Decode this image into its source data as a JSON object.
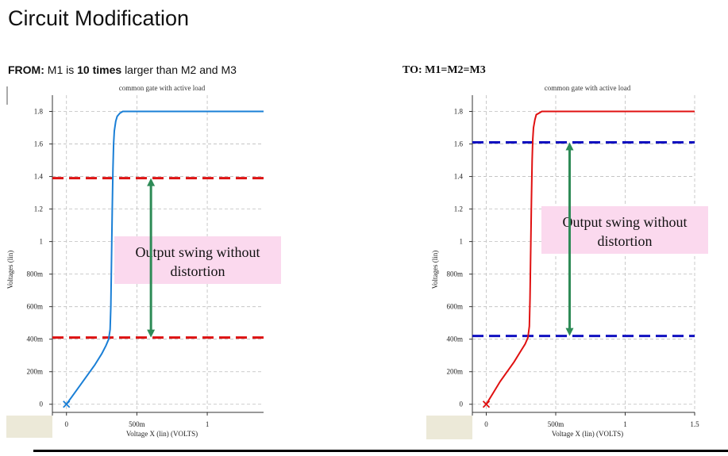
{
  "page": {
    "title": "Circuit Modification",
    "from_label": "FROM:",
    "from_text_1": "M1 is",
    "from_text_bold": "10 times",
    "from_text_2": "larger than M2 and M3",
    "to_label": "TO:",
    "to_text": "M1=M2=M3",
    "annotation_line1": "Output swing without",
    "annotation_line2": "distortion"
  },
  "colors": {
    "left_curve": "#1a7fd6",
    "right_curve": "#e01010",
    "left_dash": "#dd1111",
    "right_dash": "#1010c0",
    "arrow": "#2e8b57",
    "annotation_bg": "#fbd9ee",
    "grid": "#bdbdbd"
  },
  "chart_data": [
    {
      "type": "line",
      "title": "common gate with active load",
      "xlabel": "Voltage X (lin) (VOLTS)",
      "ylabel": "Voltages (lin)",
      "xlim": [
        -0.1,
        1.4
      ],
      "ylim": [
        -0.05,
        1.9
      ],
      "x_ticks": [
        {
          "v": 0,
          "label": "0"
        },
        {
          "v": 0.5,
          "label": "500m"
        },
        {
          "v": 1,
          "label": "1"
        }
      ],
      "y_ticks": [
        {
          "v": 0,
          "label": "0"
        },
        {
          "v": 0.2,
          "label": "200m"
        },
        {
          "v": 0.4,
          "label": "400m"
        },
        {
          "v": 0.6,
          "label": "600m"
        },
        {
          "v": 0.8,
          "label": "800m"
        },
        {
          "v": 1,
          "label": "1"
        },
        {
          "v": 1.2,
          "label": "1.2"
        },
        {
          "v": 1.4,
          "label": "1.4"
        },
        {
          "v": 1.6,
          "label": "1.6"
        },
        {
          "v": 1.8,
          "label": "1.8"
        }
      ],
      "grid": true,
      "series": [
        {
          "x": [
            0,
            0.05,
            0.1,
            0.15,
            0.2,
            0.25,
            0.28,
            0.3,
            0.31,
            0.315,
            0.32,
            0.325,
            0.33,
            0.335,
            0.34,
            0.35,
            0.36,
            0.38,
            0.4,
            0.45,
            0.5,
            0.6,
            0.8,
            1.0,
            1.2,
            1.4
          ],
          "y": [
            0,
            0.06,
            0.12,
            0.18,
            0.24,
            0.31,
            0.36,
            0.4,
            0.46,
            0.6,
            0.9,
            1.2,
            1.45,
            1.6,
            1.68,
            1.74,
            1.77,
            1.79,
            1.8,
            1.8,
            1.8,
            1.8,
            1.8,
            1.8,
            1.8,
            1.8
          ]
        }
      ],
      "hlines": [
        1.39,
        0.41
      ],
      "arrow": {
        "x": 0.6,
        "y1": 0.41,
        "y2": 1.39
      },
      "start_marker": {
        "x": 0,
        "y": 0
      }
    },
    {
      "type": "line",
      "title": "common gate with active load",
      "xlabel": "Voltage X (lin) (VOLTS)",
      "ylabel": "Voltages (lin)",
      "xlim": [
        -0.1,
        1.5
      ],
      "ylim": [
        -0.05,
        1.9
      ],
      "x_ticks": [
        {
          "v": 0,
          "label": "0"
        },
        {
          "v": 0.5,
          "label": "500m"
        },
        {
          "v": 1,
          "label": "1"
        },
        {
          "v": 1.5,
          "label": "1.5"
        }
      ],
      "y_ticks": [
        {
          "v": 0,
          "label": "0"
        },
        {
          "v": 0.2,
          "label": "200m"
        },
        {
          "v": 0.4,
          "label": "400m"
        },
        {
          "v": 0.6,
          "label": "600m"
        },
        {
          "v": 0.8,
          "label": "800m"
        },
        {
          "v": 1,
          "label": "1"
        },
        {
          "v": 1.2,
          "label": "1.2"
        },
        {
          "v": 1.4,
          "label": "1.4"
        },
        {
          "v": 1.6,
          "label": "1.6"
        },
        {
          "v": 1.8,
          "label": "1.8"
        }
      ],
      "grid": true,
      "series": [
        {
          "x": [
            0,
            0.05,
            0.1,
            0.15,
            0.2,
            0.25,
            0.28,
            0.3,
            0.31,
            0.315,
            0.32,
            0.325,
            0.33,
            0.335,
            0.34,
            0.35,
            0.36,
            0.38,
            0.4,
            0.45,
            0.5,
            0.6,
            0.8,
            1.0,
            1.2,
            1.5
          ],
          "y": [
            0,
            0.07,
            0.14,
            0.2,
            0.26,
            0.33,
            0.37,
            0.41,
            0.48,
            0.65,
            0.95,
            1.25,
            1.5,
            1.63,
            1.7,
            1.75,
            1.78,
            1.79,
            1.8,
            1.8,
            1.8,
            1.8,
            1.8,
            1.8,
            1.8,
            1.8
          ]
        }
      ],
      "hlines": [
        1.61,
        0.42
      ],
      "arrow": {
        "x": 0.6,
        "y1": 0.42,
        "y2": 1.61
      },
      "start_marker": {
        "x": 0,
        "y": 0
      }
    }
  ]
}
